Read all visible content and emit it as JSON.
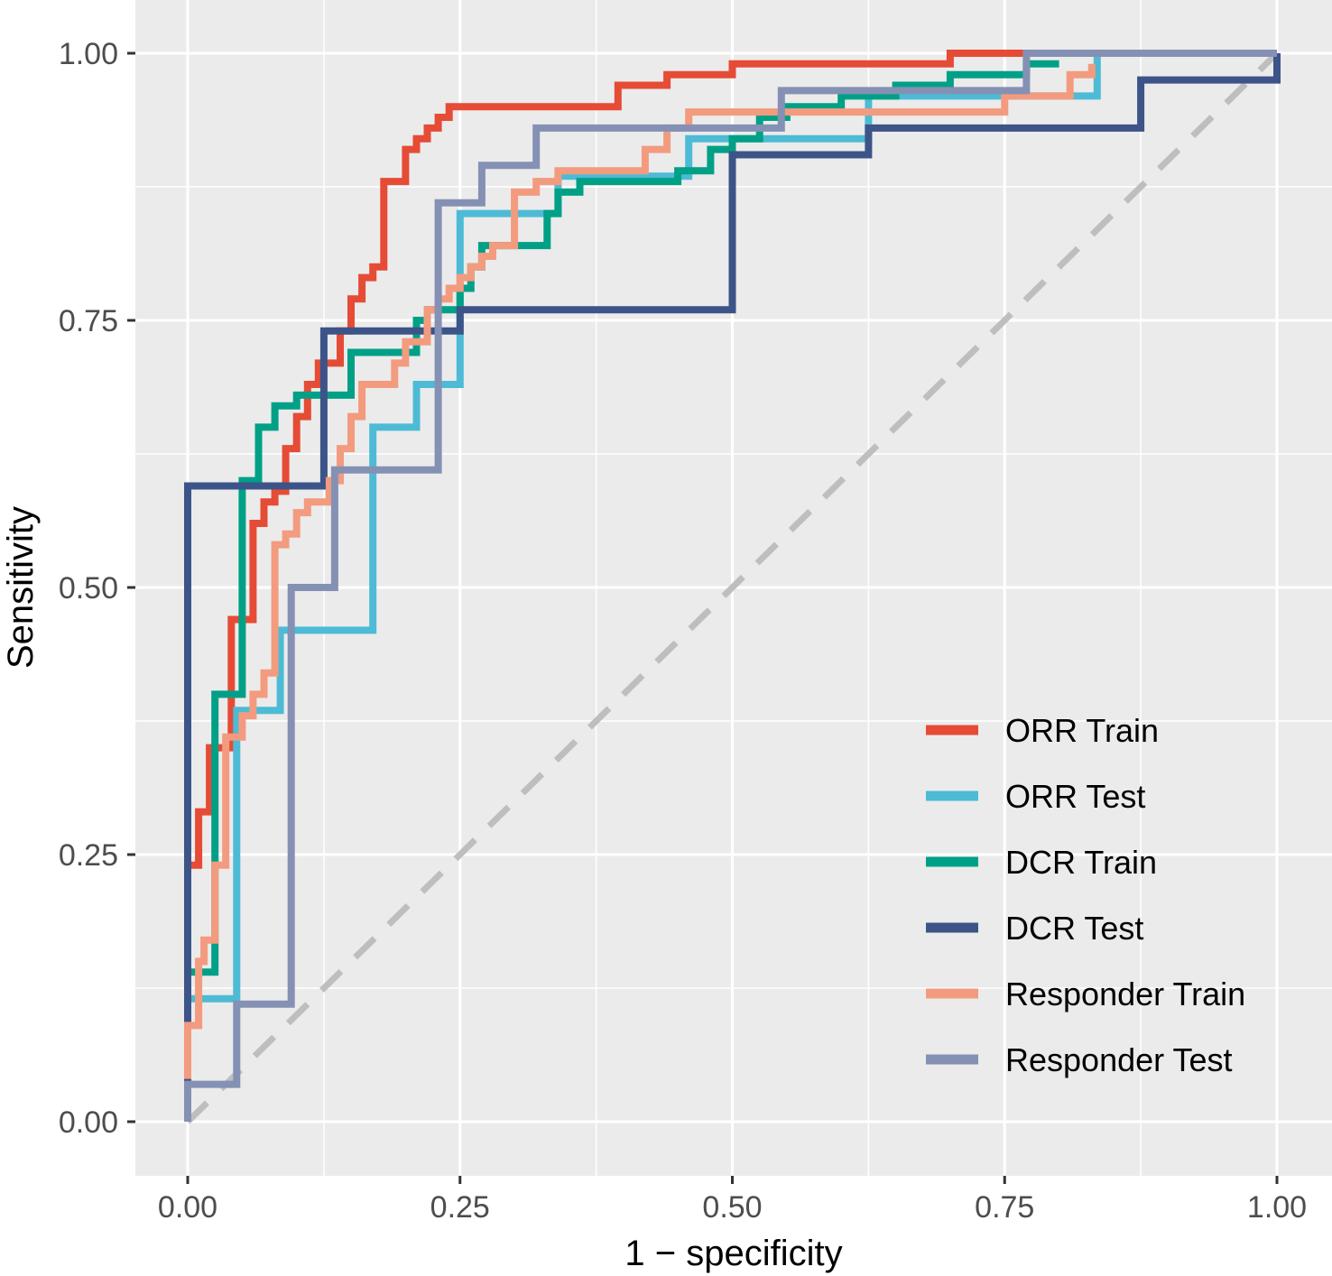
{
  "chart_data": {
    "type": "line",
    "title": "",
    "xlabel": "1 − specificity",
    "ylabel": "Sensitivity",
    "xlim": [
      -0.048,
      1.048
    ],
    "ylim": [
      -0.048,
      1.04
    ],
    "x_ticks": [
      0.0,
      0.25,
      0.5,
      0.75,
      1.0
    ],
    "x_tick_labels": [
      "0.00",
      "0.25",
      "0.50",
      "0.75",
      "1.00"
    ],
    "y_ticks": [
      0.0,
      0.25,
      0.5,
      0.75,
      1.0
    ],
    "y_tick_labels": [
      "0.00",
      "0.25",
      "0.50",
      "0.75",
      "1.00"
    ],
    "grid": true,
    "legend_position": "bottom-right",
    "reference_line": {
      "x": [
        0,
        1
      ],
      "y": [
        0,
        1
      ],
      "color": "#bebebe",
      "style": "dashed"
    },
    "series": [
      {
        "name": "ORR Train",
        "color": "#e64b35",
        "x": [
          0,
          0,
          0.01,
          0.01,
          0.02,
          0.02,
          0.04,
          0.04,
          0.06,
          0.06,
          0.07,
          0.07,
          0.08,
          0.08,
          0.09,
          0.09,
          0.1,
          0.1,
          0.11,
          0.11,
          0.12,
          0.12,
          0.14,
          0.14,
          0.15,
          0.15,
          0.16,
          0.16,
          0.17,
          0.17,
          0.18,
          0.18,
          0.2,
          0.2,
          0.21,
          0.21,
          0.22,
          0.22,
          0.23,
          0.23,
          0.24,
          0.24,
          0.395,
          0.395,
          0.44,
          0.44,
          0.5,
          0.5,
          0.7,
          0.7,
          0.77
        ],
        "y": [
          0,
          0.24,
          0.24,
          0.29,
          0.29,
          0.35,
          0.35,
          0.47,
          0.47,
          0.56,
          0.56,
          0.58,
          0.58,
          0.59,
          0.59,
          0.63,
          0.63,
          0.66,
          0.66,
          0.69,
          0.69,
          0.71,
          0.71,
          0.74,
          0.74,
          0.77,
          0.77,
          0.79,
          0.79,
          0.8,
          0.8,
          0.88,
          0.88,
          0.91,
          0.91,
          0.92,
          0.92,
          0.93,
          0.93,
          0.94,
          0.94,
          0.95,
          0.95,
          0.97,
          0.97,
          0.98,
          0.98,
          0.99,
          0.99,
          1.0,
          1.0
        ]
      },
      {
        "name": "ORR Test",
        "color": "#4dbbd5",
        "x": [
          0,
          0,
          0.045,
          0.045,
          0.085,
          0.085,
          0.17,
          0.17,
          0.21,
          0.21,
          0.25,
          0.25,
          0.34,
          0.34,
          0.46,
          0.46,
          0.625,
          0.625,
          0.835,
          0.835
        ],
        "y": [
          0,
          0.115,
          0.115,
          0.385,
          0.385,
          0.46,
          0.46,
          0.65,
          0.65,
          0.69,
          0.69,
          0.85,
          0.85,
          0.885,
          0.885,
          0.92,
          0.92,
          0.96,
          0.96,
          1.0
        ]
      },
      {
        "name": "DCR Train",
        "color": "#00a087",
        "x": [
          0,
          0,
          0.025,
          0.025,
          0.035,
          0.035,
          0.05,
          0.05,
          0.065,
          0.065,
          0.08,
          0.08,
          0.1,
          0.1,
          0.15,
          0.15,
          0.21,
          0.21,
          0.22,
          0.22,
          0.25,
          0.25,
          0.26,
          0.26,
          0.27,
          0.27,
          0.33,
          0.33,
          0.34,
          0.34,
          0.36,
          0.36,
          0.45,
          0.45,
          0.48,
          0.48,
          0.5,
          0.5,
          0.525,
          0.525,
          0.55,
          0.55,
          0.6,
          0.6,
          0.65,
          0.65,
          0.7,
          0.7,
          0.77,
          0.77,
          0.8
        ],
        "y": [
          0,
          0.14,
          0.14,
          0.4,
          0.4,
          0.4,
          0.4,
          0.6,
          0.6,
          0.65,
          0.65,
          0.67,
          0.67,
          0.68,
          0.68,
          0.72,
          0.72,
          0.75,
          0.75,
          0.76,
          0.76,
          0.78,
          0.78,
          0.8,
          0.8,
          0.82,
          0.82,
          0.85,
          0.85,
          0.87,
          0.87,
          0.88,
          0.88,
          0.89,
          0.89,
          0.91,
          0.91,
          0.92,
          0.92,
          0.94,
          0.94,
          0.95,
          0.95,
          0.96,
          0.96,
          0.97,
          0.97,
          0.98,
          0.98,
          0.99,
          0.99
        ]
      },
      {
        "name": "DCR Test",
        "color": "#3c5488",
        "x": [
          0,
          0,
          0.125,
          0.125,
          0.25,
          0.25,
          0.5,
          0.5,
          0.625,
          0.625,
          0.875,
          0.875,
          1.0,
          1.0
        ],
        "y": [
          0,
          0.595,
          0.595,
          0.74,
          0.74,
          0.76,
          0.76,
          0.905,
          0.905,
          0.93,
          0.93,
          0.975,
          0.975,
          1.0
        ]
      },
      {
        "name": "Responder Train",
        "color": "#f39b7f",
        "x": [
          0,
          0,
          0.01,
          0.01,
          0.015,
          0.015,
          0.025,
          0.025,
          0.035,
          0.035,
          0.05,
          0.05,
          0.06,
          0.06,
          0.07,
          0.07,
          0.08,
          0.08,
          0.09,
          0.09,
          0.1,
          0.1,
          0.11,
          0.11,
          0.13,
          0.13,
          0.14,
          0.14,
          0.15,
          0.15,
          0.16,
          0.16,
          0.19,
          0.19,
          0.2,
          0.2,
          0.22,
          0.22,
          0.23,
          0.23,
          0.24,
          0.24,
          0.25,
          0.25,
          0.26,
          0.26,
          0.27,
          0.27,
          0.28,
          0.28,
          0.3,
          0.3,
          0.32,
          0.32,
          0.34,
          0.34,
          0.42,
          0.42,
          0.44,
          0.44,
          0.46,
          0.46,
          0.75,
          0.75,
          0.81,
          0.81,
          0.83,
          0.83
        ],
        "y": [
          0.04,
          0.09,
          0.09,
          0.15,
          0.15,
          0.17,
          0.17,
          0.24,
          0.24,
          0.36,
          0.36,
          0.38,
          0.38,
          0.4,
          0.4,
          0.42,
          0.42,
          0.54,
          0.54,
          0.55,
          0.55,
          0.57,
          0.57,
          0.58,
          0.58,
          0.6,
          0.6,
          0.63,
          0.63,
          0.66,
          0.66,
          0.69,
          0.69,
          0.71,
          0.71,
          0.73,
          0.73,
          0.76,
          0.76,
          0.77,
          0.77,
          0.78,
          0.78,
          0.79,
          0.79,
          0.8,
          0.8,
          0.81,
          0.81,
          0.82,
          0.82,
          0.87,
          0.87,
          0.88,
          0.88,
          0.89,
          0.89,
          0.91,
          0.91,
          0.93,
          0.93,
          0.945,
          0.945,
          0.96,
          0.96,
          0.98,
          0.98,
          0.99
        ]
      },
      {
        "name": "Responder Test",
        "color": "#8491b4",
        "x": [
          0,
          0,
          0.045,
          0.045,
          0.095,
          0.095,
          0.135,
          0.135,
          0.165,
          0.165,
          0.23,
          0.23,
          0.27,
          0.27,
          0.32,
          0.32,
          0.545,
          0.545,
          0.77,
          0.77,
          1.0
        ],
        "y": [
          0,
          0.035,
          0.035,
          0.11,
          0.11,
          0.5,
          0.5,
          0.61,
          0.61,
          0.61,
          0.61,
          0.86,
          0.86,
          0.895,
          0.895,
          0.93,
          0.93,
          0.965,
          0.965,
          1.0,
          1.0
        ]
      }
    ]
  }
}
